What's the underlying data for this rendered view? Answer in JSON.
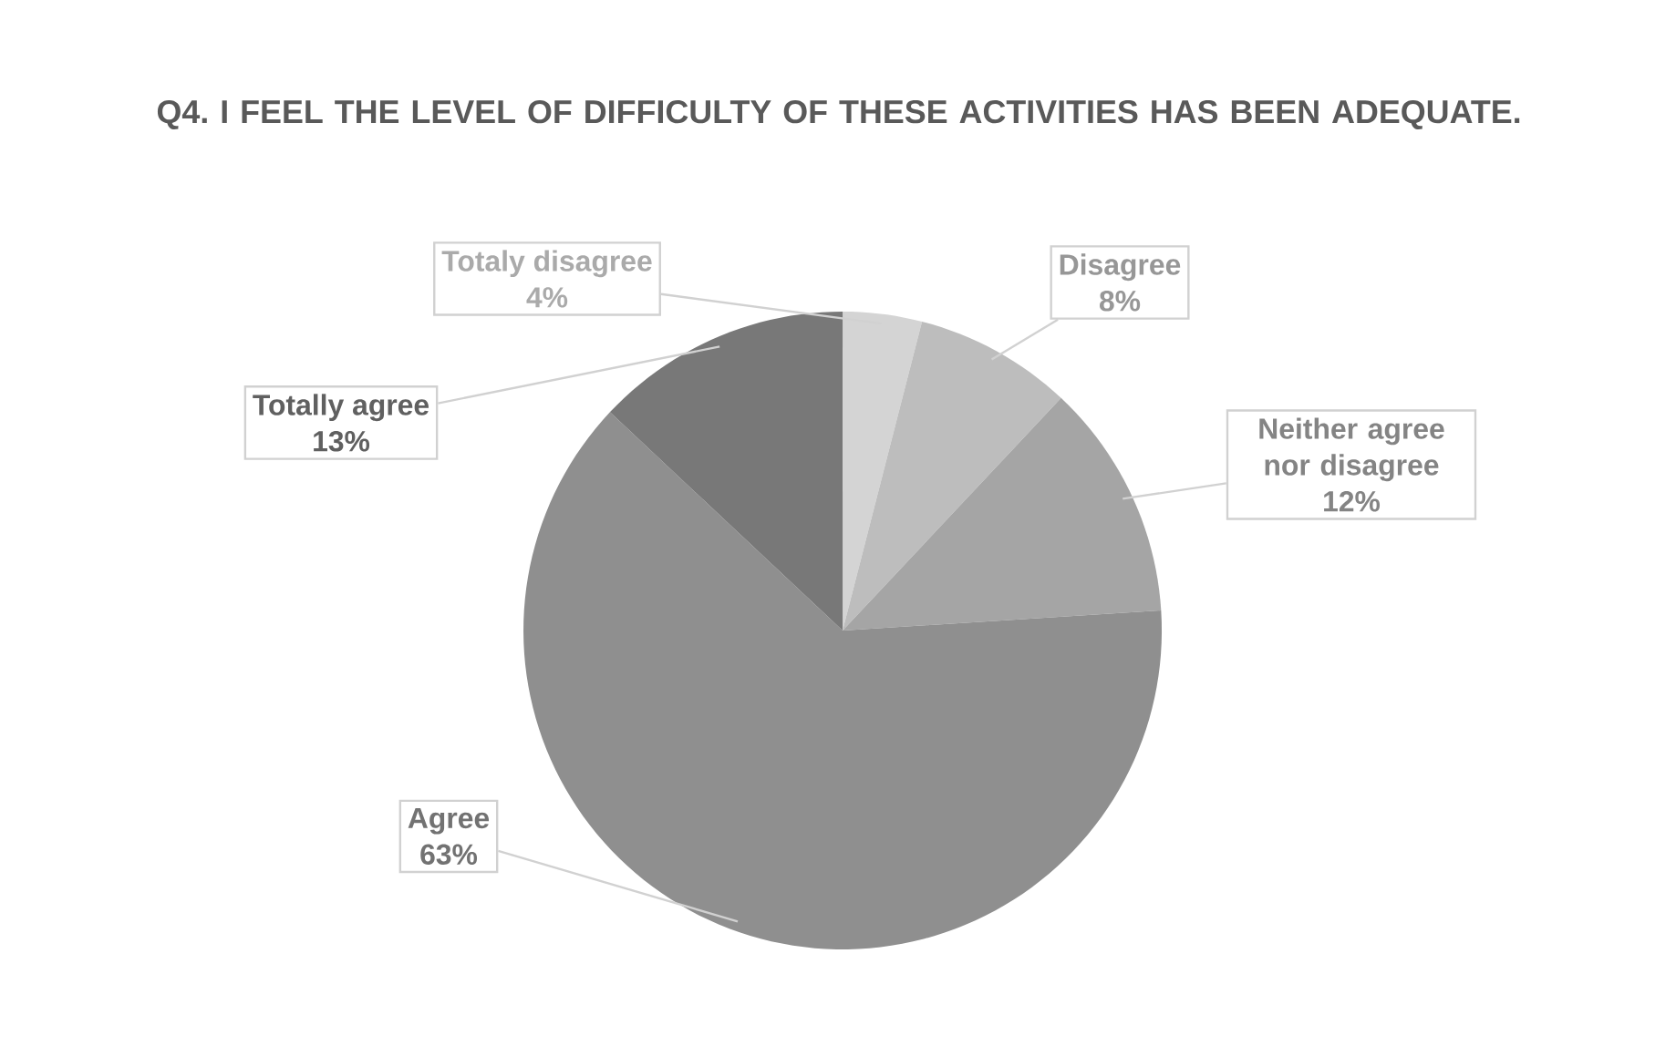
{
  "chart_data": {
    "type": "pie",
    "title": "Q4. I FEEL THE LEVEL OF DIFFICULTY OF THESE ACTIVITIES HAS BEEN ADEQUATE.",
    "categories": [
      "Totaly disagree",
      "Disagree",
      "Neither agree nor disagree",
      "Agree",
      "Totally agree"
    ],
    "values": [
      4,
      8,
      12,
      63,
      13
    ],
    "value_labels": [
      "4%",
      "8%",
      "12%",
      "63%",
      "13%"
    ],
    "colors": [
      "#d4d4d4",
      "#bdbdbd",
      "#a5a5a5",
      "#8f8f8f",
      "#787878"
    ]
  }
}
